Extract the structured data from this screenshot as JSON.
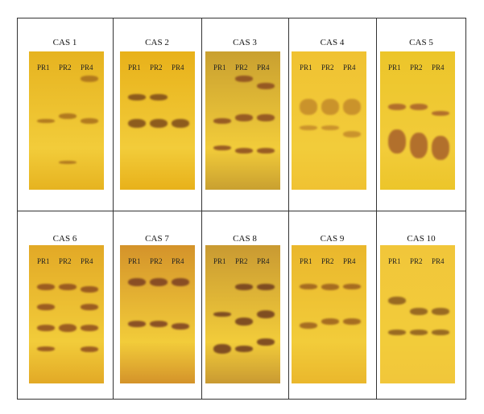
{
  "panels": [
    {
      "title": "CAS 1",
      "lanes": [
        "PR1",
        "PR2",
        "PR4"
      ]
    },
    {
      "title": "CAS 2",
      "lanes": [
        "PR1",
        "PR2",
        "PR4"
      ]
    },
    {
      "title": "CAS 3",
      "lanes": [
        "PR1",
        "PR2",
        "PR4"
      ]
    },
    {
      "title": "CAS 4",
      "lanes": [
        "PR1",
        "PR2",
        "PR4"
      ]
    },
    {
      "title": "CAS 5",
      "lanes": [
        "PR1",
        "PR2",
        "PR4"
      ]
    },
    {
      "title": "CAS 6",
      "lanes": [
        "PR1",
        "PR2",
        "PR4"
      ]
    },
    {
      "title": "CAS 7",
      "lanes": [
        "PR1",
        "PR2",
        "PR4"
      ]
    },
    {
      "title": "CAS 8",
      "lanes": [
        "PR1",
        "PR2",
        "PR4"
      ]
    },
    {
      "title": "CAS 9",
      "lanes": [
        "PR1",
        "PR2",
        "PR4"
      ]
    },
    {
      "title": "CAS 10",
      "lanes": [
        "PR1",
        "PR2",
        "PR4"
      ]
    }
  ]
}
